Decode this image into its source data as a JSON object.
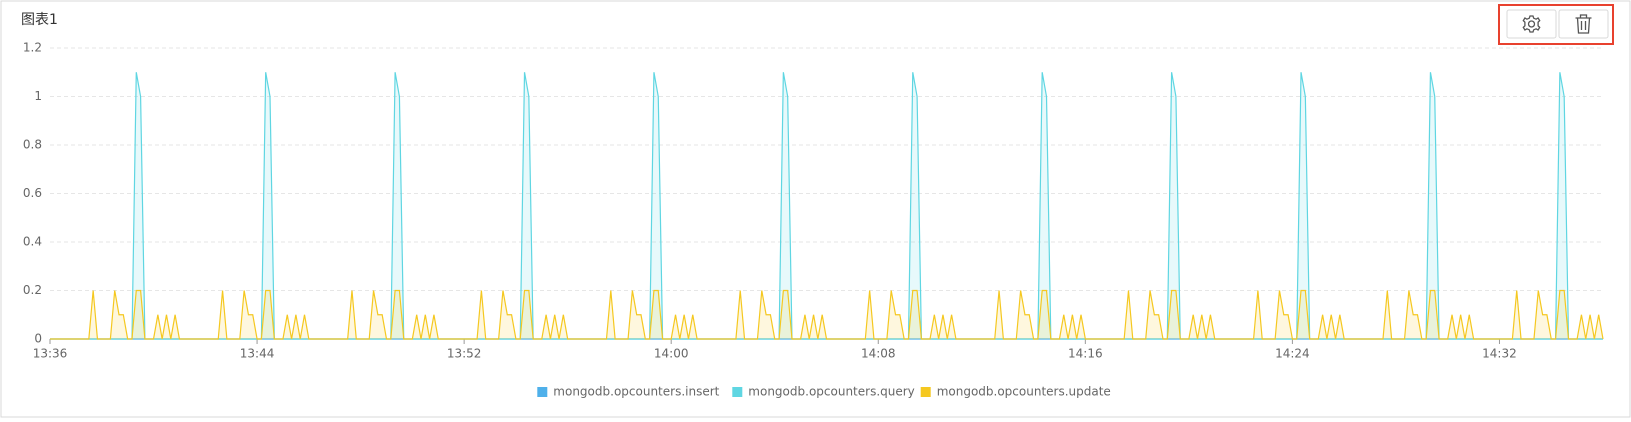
{
  "chart_data": {
    "type": "line",
    "title": "图表1",
    "x": [
      816,
      817.5,
      817.667,
      817.833,
      818.333,
      818.5,
      818.667,
      818.833,
      819,
      819.167,
      819.333,
      819.5,
      819.667,
      820,
      820.167,
      820.333,
      820.5,
      820.667,
      820.833,
      821,
      822.5,
      822.667,
      822.833,
      823.333,
      823.5,
      823.667,
      823.833,
      824,
      824.167,
      824.333,
      824.5,
      824.667,
      825,
      825.167,
      825.333,
      825.5,
      825.667,
      825.833,
      826,
      827.5,
      827.667,
      827.833,
      828.333,
      828.5,
      828.667,
      828.833,
      829,
      829.167,
      829.333,
      829.5,
      829.667,
      830,
      830.167,
      830.333,
      830.5,
      830.667,
      830.833,
      831,
      832.5,
      832.667,
      832.833,
      833.333,
      833.5,
      833.667,
      833.833,
      834,
      834.167,
      834.333,
      834.5,
      834.667,
      835,
      835.167,
      835.333,
      835.5,
      835.667,
      835.833,
      836,
      837.5,
      837.667,
      837.833,
      838.333,
      838.5,
      838.667,
      838.833,
      839,
      839.167,
      839.333,
      839.5,
      839.667,
      840,
      840.167,
      840.333,
      840.5,
      840.667,
      840.833,
      841,
      842.5,
      842.667,
      842.833,
      843.333,
      843.5,
      843.667,
      843.833,
      844,
      844.167,
      844.333,
      844.5,
      844.667,
      845,
      845.167,
      845.333,
      845.5,
      845.667,
      845.833,
      846,
      847.5,
      847.667,
      847.833,
      848.333,
      848.5,
      848.667,
      848.833,
      849,
      849.167,
      849.333,
      849.5,
      849.667,
      850,
      850.167,
      850.333,
      850.5,
      850.667,
      850.833,
      851,
      852.5,
      852.667,
      852.833,
      853.333,
      853.5,
      853.667,
      853.833,
      854,
      854.167,
      854.333,
      854.5,
      854.667,
      855,
      855.167,
      855.333,
      855.5,
      855.667,
      855.833,
      856,
      857.5,
      857.667,
      857.833,
      858.333,
      858.5,
      858.667,
      858.833,
      859,
      859.167,
      859.333,
      859.5,
      859.667,
      860,
      860.167,
      860.333,
      860.5,
      860.667,
      860.833,
      861,
      862.5,
      862.667,
      862.833,
      863.333,
      863.5,
      863.667,
      863.833,
      864,
      864.167,
      864.333,
      864.5,
      864.667,
      865,
      865.167,
      865.333,
      865.5,
      865.667,
      865.833,
      866,
      867.5,
      867.667,
      867.833,
      868.333,
      868.5,
      868.667,
      868.833,
      869,
      869.167,
      869.333,
      869.5,
      869.667,
      870,
      870.167,
      870.333,
      870.5,
      870.667,
      870.833,
      871,
      872.5,
      872.667,
      872.833,
      873.333,
      873.5,
      873.667,
      873.833,
      874,
      874.167,
      874.333,
      874.5,
      874.667,
      875,
      875.167,
      875.333,
      875.5,
      875.667,
      875.833,
      876
    ],
    "series": [
      {
        "name": "mongodb.opcounters.insert",
        "color": "#4fb0ea",
        "values": [
          0,
          0,
          0,
          0,
          0,
          0,
          0,
          0,
          0,
          0,
          0,
          0,
          0,
          0,
          0,
          0,
          0,
          0,
          0,
          0,
          0,
          0,
          0,
          0,
          0,
          0,
          0,
          0,
          0,
          0,
          0,
          0,
          0,
          0,
          0,
          0,
          0,
          0,
          0,
          0,
          0,
          0,
          0,
          0,
          0,
          0,
          0,
          0,
          0,
          0,
          0,
          0,
          0,
          0,
          0,
          0,
          0,
          0,
          0,
          0,
          0,
          0,
          0,
          0,
          0,
          0,
          0,
          0,
          0,
          0,
          0,
          0,
          0,
          0,
          0,
          0,
          0,
          0,
          0,
          0,
          0,
          0,
          0,
          0,
          0,
          0,
          0,
          0,
          0,
          0,
          0,
          0,
          0,
          0,
          0,
          0,
          0,
          0,
          0,
          0,
          0,
          0,
          0,
          0,
          0,
          0,
          0,
          0,
          0,
          0,
          0,
          0,
          0,
          0,
          0,
          0,
          0,
          0,
          0,
          0,
          0,
          0,
          0,
          0,
          0,
          0,
          0,
          0,
          0,
          0,
          0,
          0,
          0,
          0,
          0,
          0,
          0,
          0,
          0,
          0,
          0,
          0,
          0,
          0,
          0,
          0,
          0,
          0,
          0,
          0,
          0,
          0,
          0,
          0,
          0,
          0,
          0,
          0,
          0,
          0,
          0,
          0,
          0,
          0,
          0,
          0,
          0,
          0,
          0,
          0,
          0,
          0,
          0,
          0,
          0,
          0,
          0,
          0,
          0,
          0,
          0,
          0,
          0,
          0,
          0,
          0,
          0,
          0,
          0,
          0,
          0,
          0,
          0,
          0,
          0,
          0,
          0,
          0,
          0,
          0,
          0,
          0,
          0,
          0,
          0,
          0,
          0,
          0,
          0,
          0,
          0,
          0,
          0,
          0,
          0,
          0,
          0,
          0,
          0,
          0,
          0,
          0,
          0,
          0,
          0,
          0,
          0,
          0,
          0
        ]
      },
      {
        "name": "mongodb.opcounters.query",
        "color": "#5fd6e2",
        "values": [
          0,
          0,
          0,
          0,
          0,
          0,
          0,
          0,
          0,
          0,
          1.1,
          1,
          0,
          0,
          0,
          0,
          0,
          0,
          0,
          0,
          0,
          0,
          0,
          0,
          0,
          0,
          0,
          0,
          0,
          1.1,
          1,
          0,
          0,
          0,
          0,
          0,
          0,
          0,
          0,
          0,
          0,
          0,
          0,
          0,
          0,
          0,
          0,
          0,
          1.1,
          1,
          0,
          0,
          0,
          0,
          0,
          0,
          0,
          0,
          0,
          0,
          0,
          0,
          0,
          0,
          0,
          0,
          0,
          1.1,
          1,
          0,
          0,
          0,
          0,
          0,
          0,
          0,
          0,
          0,
          0,
          0,
          0,
          0,
          0,
          0,
          0,
          0,
          1.1,
          1,
          0,
          0,
          0,
          0,
          0,
          0,
          0,
          0,
          0,
          0,
          0,
          0,
          0,
          0,
          0,
          0,
          0,
          1.1,
          1,
          0,
          0,
          0,
          0,
          0,
          0,
          0,
          0,
          0,
          0,
          0,
          0,
          0,
          0,
          0,
          0,
          0,
          1.1,
          1,
          0,
          0,
          0,
          0,
          0,
          0,
          0,
          0,
          0,
          0,
          0,
          0,
          0,
          0,
          0,
          0,
          0,
          1.1,
          1,
          0,
          0,
          0,
          0,
          0,
          0,
          0,
          0,
          0,
          0,
          0,
          0,
          0,
          0,
          0,
          0,
          0,
          1.1,
          1,
          0,
          0,
          0,
          0,
          0,
          0,
          0,
          0,
          0,
          0,
          0,
          0,
          0,
          0,
          0,
          0,
          0,
          1.1,
          1,
          0,
          0,
          0,
          0,
          0,
          0,
          0,
          0,
          0,
          0,
          0,
          0,
          0,
          0,
          0,
          0,
          0,
          1.1,
          1,
          0,
          0,
          0,
          0,
          0,
          0,
          0,
          0,
          0,
          0,
          0,
          0,
          0,
          0,
          0,
          0,
          0,
          1.1,
          1,
          0,
          0,
          0,
          0,
          0,
          0,
          0,
          0
        ]
      },
      {
        "name": "mongodb.opcounters.update",
        "color": "#f5c820",
        "values": [
          0,
          0,
          0.2,
          0,
          0,
          0.2,
          0.1,
          0.1,
          0,
          0,
          0.2,
          0.2,
          0,
          0,
          0.1,
          0,
          0.1,
          0,
          0.1,
          0,
          0,
          0.2,
          0,
          0,
          0.2,
          0.1,
          0.1,
          0,
          0,
          0.2,
          0.2,
          0,
          0,
          0.1,
          0,
          0.1,
          0,
          0.1,
          0,
          0,
          0.2,
          0,
          0,
          0.2,
          0.1,
          0.1,
          0,
          0,
          0.2,
          0.2,
          0,
          0,
          0.1,
          0,
          0.1,
          0,
          0.1,
          0,
          0,
          0.2,
          0,
          0,
          0.2,
          0.1,
          0.1,
          0,
          0,
          0.2,
          0.2,
          0,
          0,
          0.1,
          0,
          0.1,
          0,
          0.1,
          0,
          0,
          0.2,
          0,
          0,
          0.2,
          0.1,
          0.1,
          0,
          0,
          0.2,
          0.2,
          0,
          0,
          0.1,
          0,
          0.1,
          0,
          0.1,
          0,
          0,
          0.2,
          0,
          0,
          0.2,
          0.1,
          0.1,
          0,
          0,
          0.2,
          0.2,
          0,
          0,
          0.1,
          0,
          0.1,
          0,
          0.1,
          0,
          0,
          0.2,
          0,
          0,
          0.2,
          0.1,
          0.1,
          0,
          0,
          0.2,
          0.2,
          0,
          0,
          0.1,
          0,
          0.1,
          0,
          0.1,
          0,
          0,
          0.2,
          0,
          0,
          0.2,
          0.1,
          0.1,
          0,
          0,
          0.2,
          0.2,
          0,
          0,
          0.1,
          0,
          0.1,
          0,
          0.1,
          0,
          0,
          0.2,
          0,
          0,
          0.2,
          0.1,
          0.1,
          0,
          0,
          0.2,
          0.2,
          0,
          0,
          0.1,
          0,
          0.1,
          0,
          0.1,
          0,
          0,
          0.2,
          0,
          0,
          0.2,
          0.1,
          0.1,
          0,
          0,
          0.2,
          0.2,
          0,
          0,
          0.1,
          0,
          0.1,
          0,
          0.1,
          0,
          0,
          0.2,
          0,
          0,
          0.2,
          0.1,
          0.1,
          0,
          0,
          0.2,
          0.2,
          0,
          0,
          0.1,
          0,
          0.1,
          0,
          0.1,
          0,
          0,
          0.2,
          0,
          0,
          0.2,
          0.1,
          0.1,
          0,
          0,
          0.2,
          0.2,
          0,
          0,
          0.1,
          0,
          0.1,
          0,
          0.1,
          0
        ]
      }
    ],
    "xlim": [
      816,
      876
    ],
    "xticks": [
      {
        "value": 816,
        "label": "13:36"
      },
      {
        "value": 824,
        "label": "13:44"
      },
      {
        "value": 832,
        "label": "13:52"
      },
      {
        "value": 840,
        "label": "14:00"
      },
      {
        "value": 848,
        "label": "14:08"
      },
      {
        "value": 856,
        "label": "14:16"
      },
      {
        "value": 864,
        "label": "14:24"
      },
      {
        "value": 872,
        "label": "14:32"
      }
    ],
    "ylim": [
      0,
      1.2
    ],
    "yticks": [
      0,
      0.2,
      0.4,
      0.6,
      0.8,
      1,
      1.2
    ],
    "grid": true,
    "area": true,
    "legend": "bottom"
  }
}
